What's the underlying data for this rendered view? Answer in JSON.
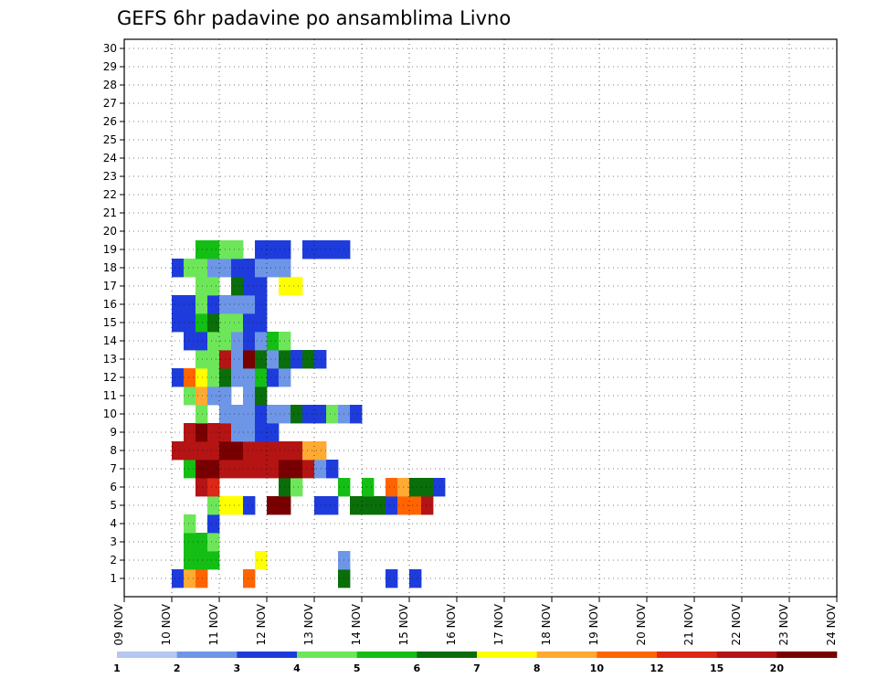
{
  "chart_data": {
    "type": "heatmap",
    "title": "GEFS 6hr padavine po ansamblima Livno",
    "xlabel": "",
    "ylabel": "",
    "x_labels": [
      "09 NOV",
      "10 NOV",
      "11 NOV",
      "12 NOV",
      "13 NOV",
      "14 NOV",
      "15 NOV",
      "16 NOV",
      "17 NOV",
      "18 NOV",
      "19 NOV",
      "20 NOV",
      "21 NOV",
      "22 NOV",
      "23 NOV",
      "24 NOV"
    ],
    "y_labels": [
      "1",
      "2",
      "3",
      "4",
      "5",
      "6",
      "7",
      "8",
      "9",
      "10",
      "11",
      "12",
      "13",
      "14",
      "15",
      "16",
      "17",
      "18",
      "19",
      "20",
      "21",
      "22",
      "23",
      "24",
      "25",
      "26",
      "27",
      "28",
      "29",
      "30"
    ],
    "colorbar_labels": [
      "1",
      "2",
      "3",
      "4",
      "5",
      "6",
      "7",
      "8",
      "10",
      "12",
      "15",
      "20"
    ],
    "colorbar_colors": [
      "#b4c8f0",
      "#6e96e6",
      "#1e3cdc",
      "#6ee65a",
      "#14be14",
      "#0a6e0a",
      "#ffff00",
      "#ffaa32",
      "#ff6400",
      "#dc2814",
      "#b41414",
      "#780000"
    ],
    "cells": [
      [
        1,
        [
          [
            0,
            2
          ],
          [
            1,
            7
          ],
          [
            2,
            8
          ],
          [
            6,
            8
          ],
          [
            14,
            5
          ],
          [
            18,
            2
          ],
          [
            20,
            2
          ]
        ]
      ],
      [
        2,
        [
          [
            1,
            4
          ],
          [
            2,
            4
          ],
          [
            3,
            4
          ],
          [
            7,
            6
          ],
          [
            14,
            1
          ]
        ]
      ],
      [
        3,
        [
          [
            1,
            4
          ],
          [
            2,
            4
          ],
          [
            3,
            3
          ]
        ]
      ],
      [
        4,
        [
          [
            1,
            3
          ],
          [
            3,
            2
          ]
        ]
      ],
      [
        5,
        [
          [
            3,
            3
          ],
          [
            4,
            6
          ],
          [
            5,
            6
          ],
          [
            6,
            2
          ],
          [
            8,
            11
          ],
          [
            9,
            11
          ],
          [
            12,
            2
          ],
          [
            13,
            2
          ],
          [
            15,
            5
          ],
          [
            16,
            5
          ],
          [
            17,
            5
          ],
          [
            18,
            2
          ],
          [
            19,
            8
          ],
          [
            20,
            8
          ],
          [
            21,
            10
          ]
        ]
      ],
      [
        6,
        [
          [
            2,
            10
          ],
          [
            3,
            9
          ],
          [
            9,
            5
          ],
          [
            10,
            3
          ],
          [
            14,
            4
          ],
          [
            16,
            4
          ],
          [
            18,
            8
          ],
          [
            19,
            7
          ],
          [
            20,
            5
          ],
          [
            21,
            5
          ],
          [
            22,
            2
          ]
        ]
      ],
      [
        7,
        [
          [
            1,
            4
          ],
          [
            2,
            11
          ],
          [
            3,
            11
          ],
          [
            4,
            10
          ],
          [
            5,
            10
          ],
          [
            6,
            10
          ],
          [
            7,
            10
          ],
          [
            8,
            10
          ],
          [
            9,
            11
          ],
          [
            10,
            11
          ],
          [
            11,
            10
          ],
          [
            12,
            1
          ],
          [
            13,
            2
          ]
        ]
      ],
      [
        8,
        [
          [
            0,
            10
          ],
          [
            1,
            10
          ],
          [
            2,
            10
          ],
          [
            3,
            10
          ],
          [
            4,
            11
          ],
          [
            5,
            11
          ],
          [
            6,
            10
          ],
          [
            7,
            10
          ],
          [
            8,
            10
          ],
          [
            9,
            10
          ],
          [
            10,
            10
          ],
          [
            11,
            7
          ],
          [
            12,
            7
          ]
        ]
      ],
      [
        9,
        [
          [
            1,
            10
          ],
          [
            2,
            11
          ],
          [
            3,
            10
          ],
          [
            4,
            10
          ],
          [
            5,
            1
          ],
          [
            6,
            1
          ],
          [
            7,
            2
          ],
          [
            8,
            2
          ]
        ]
      ],
      [
        10,
        [
          [
            2,
            3
          ],
          [
            4,
            1
          ],
          [
            5,
            1
          ],
          [
            6,
            1
          ],
          [
            7,
            2
          ],
          [
            8,
            1
          ],
          [
            9,
            1
          ],
          [
            10,
            5
          ],
          [
            11,
            2
          ],
          [
            12,
            2
          ],
          [
            13,
            3
          ],
          [
            14,
            1
          ],
          [
            15,
            2
          ]
        ]
      ],
      [
        11,
        [
          [
            1,
            3
          ],
          [
            2,
            7
          ],
          [
            3,
            1
          ],
          [
            4,
            1
          ],
          [
            6,
            1
          ],
          [
            7,
            5
          ]
        ]
      ],
      [
        12,
        [
          [
            0,
            2
          ],
          [
            1,
            8
          ],
          [
            2,
            6
          ],
          [
            3,
            3
          ],
          [
            4,
            5
          ],
          [
            5,
            1
          ],
          [
            6,
            1
          ],
          [
            7,
            4
          ],
          [
            8,
            2
          ],
          [
            9,
            1
          ]
        ]
      ],
      [
        13,
        [
          [
            2,
            3
          ],
          [
            3,
            3
          ],
          [
            4,
            10
          ],
          [
            5,
            1
          ],
          [
            6,
            11
          ],
          [
            7,
            5
          ],
          [
            8,
            1
          ],
          [
            9,
            5
          ],
          [
            10,
            2
          ],
          [
            11,
            5
          ],
          [
            12,
            2
          ]
        ]
      ],
      [
        14,
        [
          [
            1,
            2
          ],
          [
            2,
            2
          ],
          [
            3,
            3
          ],
          [
            4,
            3
          ],
          [
            5,
            1
          ],
          [
            6,
            2
          ],
          [
            7,
            1
          ],
          [
            8,
            4
          ],
          [
            9,
            3
          ]
        ]
      ],
      [
        15,
        [
          [
            0,
            2
          ],
          [
            1,
            2
          ],
          [
            2,
            4
          ],
          [
            3,
            5
          ],
          [
            4,
            3
          ],
          [
            5,
            3
          ],
          [
            6,
            2
          ],
          [
            7,
            2
          ]
        ]
      ],
      [
        16,
        [
          [
            0,
            2
          ],
          [
            1,
            2
          ],
          [
            2,
            3
          ],
          [
            3,
            2
          ],
          [
            4,
            1
          ],
          [
            5,
            1
          ],
          [
            6,
            1
          ],
          [
            7,
            2
          ]
        ]
      ],
      [
        17,
        [
          [
            2,
            3
          ],
          [
            3,
            3
          ],
          [
            5,
            5
          ],
          [
            6,
            2
          ],
          [
            7,
            2
          ],
          [
            9,
            6
          ],
          [
            10,
            6
          ]
        ]
      ],
      [
        18,
        [
          [
            0,
            2
          ],
          [
            1,
            3
          ],
          [
            2,
            3
          ],
          [
            3,
            1
          ],
          [
            4,
            1
          ],
          [
            5,
            2
          ],
          [
            6,
            2
          ],
          [
            7,
            1
          ],
          [
            8,
            1
          ],
          [
            9,
            1
          ]
        ]
      ],
      [
        19,
        [
          [
            2,
            4
          ],
          [
            3,
            4
          ],
          [
            4,
            3
          ],
          [
            5,
            3
          ],
          [
            7,
            2
          ],
          [
            8,
            2
          ],
          [
            9,
            2
          ],
          [
            11,
            2
          ],
          [
            12,
            2
          ],
          [
            13,
            2
          ],
          [
            14,
            2
          ]
        ]
      ]
    ]
  }
}
